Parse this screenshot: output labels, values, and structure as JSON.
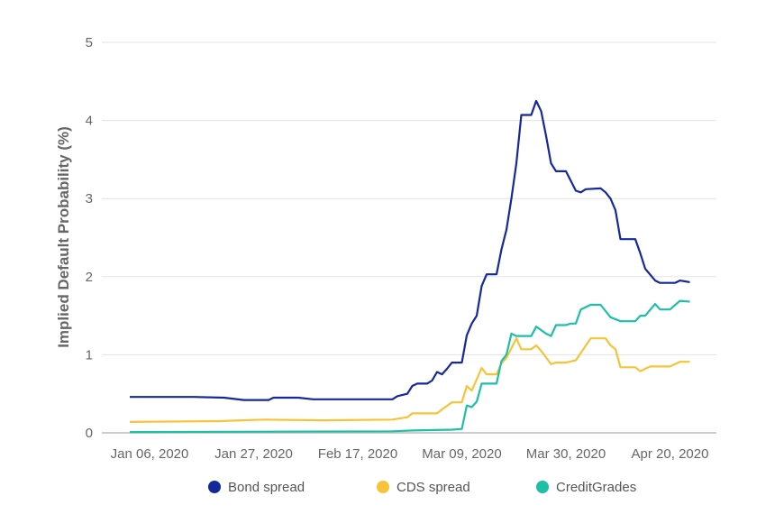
{
  "chart_data": {
    "type": "line",
    "title": "",
    "xlabel": "",
    "ylabel": "Implied Default Probability (%)",
    "ylim": [
      0,
      5
    ],
    "yticks": [
      "0",
      "1",
      "2",
      "3",
      "4",
      "5"
    ],
    "xticks": [
      {
        "date": "2020-01-06",
        "label": "Jan 06, 2020"
      },
      {
        "date": "2020-01-27",
        "label": "Jan 27, 2020"
      },
      {
        "date": "2020-02-17",
        "label": "Feb 17, 2020"
      },
      {
        "date": "2020-03-09",
        "label": "Mar 09, 2020"
      },
      {
        "date": "2020-03-30",
        "label": "Mar 30, 2020"
      },
      {
        "date": "2020-04-20",
        "label": "Apr 20, 2020"
      }
    ],
    "grid": true,
    "legend_position": "bottom",
    "series": [
      {
        "name": "Bond spread",
        "color": "#15299a",
        "points": [
          [
            "2020-01-02",
            0.46
          ],
          [
            "2020-01-15",
            0.46
          ],
          [
            "2020-01-21",
            0.45
          ],
          [
            "2020-01-25",
            0.42
          ],
          [
            "2020-01-30",
            0.42
          ],
          [
            "2020-01-31",
            0.45
          ],
          [
            "2020-02-05",
            0.45
          ],
          [
            "2020-02-08",
            0.43
          ],
          [
            "2020-02-13",
            0.43
          ],
          [
            "2020-02-24",
            0.43
          ],
          [
            "2020-02-25",
            0.47
          ],
          [
            "2020-02-27",
            0.5
          ],
          [
            "2020-02-28",
            0.6
          ],
          [
            "2020-02-29",
            0.63
          ],
          [
            "2020-03-02",
            0.63
          ],
          [
            "2020-03-03",
            0.67
          ],
          [
            "2020-03-04",
            0.78
          ],
          [
            "2020-03-05",
            0.75
          ],
          [
            "2020-03-06",
            0.82
          ],
          [
            "2020-03-07",
            0.9
          ],
          [
            "2020-03-09",
            0.9
          ],
          [
            "2020-03-10",
            1.25
          ],
          [
            "2020-03-11",
            1.4
          ],
          [
            "2020-03-12",
            1.5
          ],
          [
            "2020-03-13",
            1.88
          ],
          [
            "2020-03-14",
            2.03
          ],
          [
            "2020-03-16",
            2.03
          ],
          [
            "2020-03-17",
            2.35
          ],
          [
            "2020-03-18",
            2.6
          ],
          [
            "2020-03-19",
            3.0
          ],
          [
            "2020-03-20",
            3.45
          ],
          [
            "2020-03-21",
            4.07
          ],
          [
            "2020-03-23",
            4.07
          ],
          [
            "2020-03-24",
            4.25
          ],
          [
            "2020-03-25",
            4.12
          ],
          [
            "2020-03-26",
            3.8
          ],
          [
            "2020-03-27",
            3.45
          ],
          [
            "2020-03-28",
            3.35
          ],
          [
            "2020-03-30",
            3.35
          ],
          [
            "2020-04-01",
            3.1
          ],
          [
            "2020-04-02",
            3.08
          ],
          [
            "2020-04-03",
            3.12
          ],
          [
            "2020-04-06",
            3.13
          ],
          [
            "2020-04-07",
            3.08
          ],
          [
            "2020-04-08",
            3.0
          ],
          [
            "2020-04-09",
            2.85
          ],
          [
            "2020-04-10",
            2.48
          ],
          [
            "2020-04-13",
            2.48
          ],
          [
            "2020-04-14",
            2.3
          ],
          [
            "2020-04-15",
            2.1
          ],
          [
            "2020-04-17",
            1.95
          ],
          [
            "2020-04-18",
            1.92
          ],
          [
            "2020-04-21",
            1.92
          ],
          [
            "2020-04-22",
            1.95
          ],
          [
            "2020-04-24",
            1.93
          ]
        ]
      },
      {
        "name": "CDS spread",
        "color": "#f7c338",
        "points": [
          [
            "2020-01-02",
            0.14
          ],
          [
            "2020-01-20",
            0.15
          ],
          [
            "2020-01-29",
            0.17
          ],
          [
            "2020-02-10",
            0.16
          ],
          [
            "2020-02-24",
            0.17
          ],
          [
            "2020-02-27",
            0.2
          ],
          [
            "2020-02-28",
            0.25
          ],
          [
            "2020-03-04",
            0.25
          ],
          [
            "2020-03-05",
            0.3
          ],
          [
            "2020-03-07",
            0.39
          ],
          [
            "2020-03-09",
            0.39
          ],
          [
            "2020-03-10",
            0.6
          ],
          [
            "2020-03-11",
            0.54
          ],
          [
            "2020-03-13",
            0.83
          ],
          [
            "2020-03-14",
            0.75
          ],
          [
            "2020-03-16",
            0.75
          ],
          [
            "2020-03-17",
            0.89
          ],
          [
            "2020-03-18",
            0.96
          ],
          [
            "2020-03-20",
            1.21
          ],
          [
            "2020-03-21",
            1.07
          ],
          [
            "2020-03-23",
            1.07
          ],
          [
            "2020-03-24",
            1.12
          ],
          [
            "2020-03-25",
            1.05
          ],
          [
            "2020-03-27",
            0.88
          ],
          [
            "2020-03-28",
            0.9
          ],
          [
            "2020-03-30",
            0.9
          ],
          [
            "2020-04-01",
            0.93
          ],
          [
            "2020-04-04",
            1.21
          ],
          [
            "2020-04-07",
            1.21
          ],
          [
            "2020-04-08",
            1.12
          ],
          [
            "2020-04-09",
            1.07
          ],
          [
            "2020-04-10",
            0.84
          ],
          [
            "2020-04-13",
            0.84
          ],
          [
            "2020-04-14",
            0.79
          ],
          [
            "2020-04-16",
            0.85
          ],
          [
            "2020-04-20",
            0.85
          ],
          [
            "2020-04-22",
            0.91
          ],
          [
            "2020-04-24",
            0.91
          ]
        ]
      },
      {
        "name": "CreditGrades",
        "color": "#1dbfa6",
        "points": [
          [
            "2020-01-02",
            0.01
          ],
          [
            "2020-02-24",
            0.02
          ],
          [
            "2020-02-28",
            0.03
          ],
          [
            "2020-03-07",
            0.04
          ],
          [
            "2020-03-09",
            0.05
          ],
          [
            "2020-03-10",
            0.35
          ],
          [
            "2020-03-11",
            0.33
          ],
          [
            "2020-03-12",
            0.4
          ],
          [
            "2020-03-13",
            0.63
          ],
          [
            "2020-03-16",
            0.63
          ],
          [
            "2020-03-17",
            0.92
          ],
          [
            "2020-03-18",
            1.0
          ],
          [
            "2020-03-19",
            1.27
          ],
          [
            "2020-03-20",
            1.24
          ],
          [
            "2020-03-23",
            1.24
          ],
          [
            "2020-03-24",
            1.36
          ],
          [
            "2020-03-26",
            1.27
          ],
          [
            "2020-03-27",
            1.24
          ],
          [
            "2020-03-28",
            1.38
          ],
          [
            "2020-03-30",
            1.38
          ],
          [
            "2020-03-31",
            1.4
          ],
          [
            "2020-04-01",
            1.4
          ],
          [
            "2020-04-02",
            1.58
          ],
          [
            "2020-04-04",
            1.64
          ],
          [
            "2020-04-06",
            1.64
          ],
          [
            "2020-04-08",
            1.48
          ],
          [
            "2020-04-10",
            1.43
          ],
          [
            "2020-04-13",
            1.43
          ],
          [
            "2020-04-14",
            1.5
          ],
          [
            "2020-04-15",
            1.5
          ],
          [
            "2020-04-17",
            1.65
          ],
          [
            "2020-04-18",
            1.58
          ],
          [
            "2020-04-20",
            1.58
          ],
          [
            "2020-04-22",
            1.69
          ],
          [
            "2020-04-24",
            1.68
          ]
        ]
      }
    ]
  }
}
